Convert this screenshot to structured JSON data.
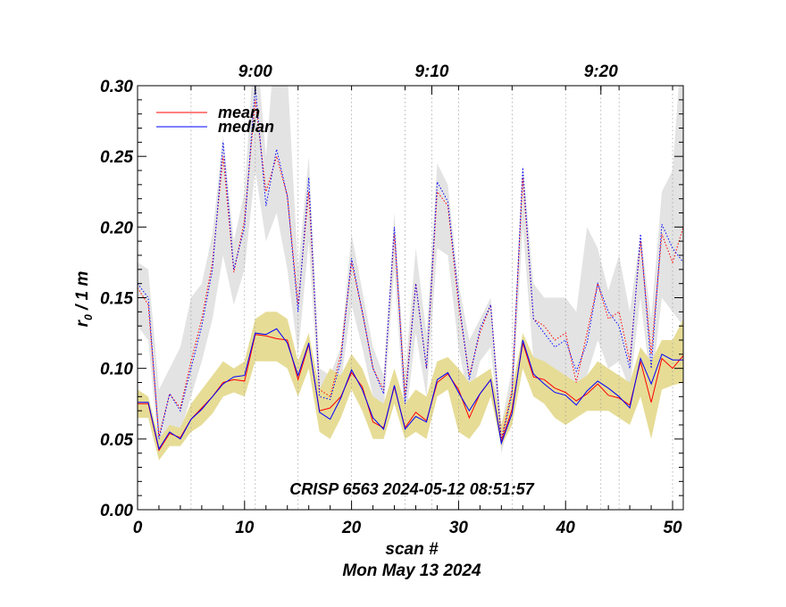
{
  "chart_data": {
    "type": "line",
    "xlabel": "scan #",
    "date_label": "Mon May 13 2024",
    "ylabel_main": "r",
    "ylabel_sub": "0",
    "ylabel_tail": " / 1 m",
    "annotation": "CRISP 6563 2024-05-12 08:51:57",
    "xlim": [
      0,
      51
    ],
    "ylim": [
      0,
      0.3
    ],
    "x_ticks": [
      "0",
      "10",
      "20",
      "30",
      "40",
      "50"
    ],
    "x_tick_values": [
      0,
      10,
      20,
      30,
      40,
      50
    ],
    "y_ticks": [
      "0.00",
      "0.05",
      "0.10",
      "0.15",
      "0.20",
      "0.25",
      "0.30"
    ],
    "y_tick_values": [
      0,
      0.05,
      0.1,
      0.15,
      0.2,
      0.25,
      0.3
    ],
    "time_ticks": [
      {
        "label": "9:00",
        "scan": 11
      },
      {
        "label": "9:10",
        "scan": 27.5
      },
      {
        "label": "9:20",
        "scan": 43.3
      }
    ],
    "time_grid_scans": [
      5,
      10,
      11,
      15,
      20,
      25,
      27.5,
      30,
      35,
      40,
      43.3,
      45,
      50
    ],
    "legend": [
      {
        "name": "mean",
        "color": "#ff0000"
      },
      {
        "name": "median",
        "color": "#0000ff"
      }
    ],
    "colors": {
      "mean": "#ff0000",
      "median": "#0000ff",
      "band_low": "#e6dc96",
      "band_high": "#e3e3e3",
      "grid": "#999999"
    },
    "series_high_mean": [
      0.157,
      0.145,
      0.052,
      0.082,
      0.072,
      0.105,
      0.135,
      0.175,
      0.25,
      0.168,
      0.205,
      0.29,
      0.225,
      0.25,
      0.222,
      0.145,
      0.225,
      0.085,
      0.08,
      0.11,
      0.175,
      0.14,
      0.1,
      0.085,
      0.195,
      0.08,
      0.16,
      0.1,
      0.225,
      0.215,
      0.145,
      0.095,
      0.125,
      0.145,
      0.05,
      0.085,
      0.235,
      0.135,
      0.13,
      0.12,
      0.125,
      0.09,
      0.125,
      0.16,
      0.135,
      0.14,
      0.105,
      0.19,
      0.11,
      0.195,
      0.175,
      0.2
    ],
    "series_high_median": [
      0.16,
      0.15,
      0.05,
      0.082,
      0.07,
      0.1,
      0.13,
      0.17,
      0.26,
      0.17,
      0.2,
      0.3,
      0.215,
      0.255,
      0.222,
      0.14,
      0.235,
      0.08,
      0.078,
      0.105,
      0.178,
      0.14,
      0.1,
      0.082,
      0.2,
      0.075,
      0.16,
      0.1,
      0.232,
      0.218,
      0.15,
      0.092,
      0.128,
      0.145,
      0.048,
      0.082,
      0.242,
      0.135,
      0.125,
      0.115,
      0.12,
      0.098,
      0.118,
      0.16,
      0.14,
      0.13,
      0.1,
      0.195,
      0.1,
      0.202,
      0.185,
      0.175
    ],
    "series_low_mean": [
      0.075,
      0.075,
      0.042,
      0.054,
      0.051,
      0.064,
      0.072,
      0.08,
      0.09,
      0.092,
      0.091,
      0.124,
      0.123,
      0.121,
      0.12,
      0.092,
      0.117,
      0.07,
      0.072,
      0.08,
      0.097,
      0.087,
      0.062,
      0.058,
      0.087,
      0.058,
      0.069,
      0.063,
      0.09,
      0.096,
      0.085,
      0.065,
      0.082,
      0.092,
      0.048,
      0.071,
      0.118,
      0.094,
      0.092,
      0.086,
      0.083,
      0.077,
      0.082,
      0.089,
      0.081,
      0.079,
      0.074,
      0.105,
      0.076,
      0.107,
      0.1,
      0.109
    ],
    "series_low_median": [
      0.076,
      0.076,
      0.043,
      0.055,
      0.05,
      0.064,
      0.071,
      0.08,
      0.089,
      0.094,
      0.095,
      0.125,
      0.124,
      0.128,
      0.118,
      0.095,
      0.118,
      0.069,
      0.064,
      0.079,
      0.099,
      0.085,
      0.065,
      0.057,
      0.088,
      0.057,
      0.066,
      0.062,
      0.092,
      0.097,
      0.083,
      0.07,
      0.082,
      0.092,
      0.047,
      0.068,
      0.12,
      0.096,
      0.089,
      0.083,
      0.081,
      0.074,
      0.084,
      0.091,
      0.086,
      0.08,
      0.072,
      0.107,
      0.089,
      0.11,
      0.106,
      0.106
    ],
    "band_high_top": [
      0.175,
      0.17,
      0.085,
      0.1,
      0.115,
      0.15,
      0.16,
      0.195,
      0.265,
      0.19,
      0.225,
      0.34,
      0.25,
      0.345,
      0.31,
      0.17,
      0.25,
      0.1,
      0.095,
      0.115,
      0.195,
      0.155,
      0.115,
      0.095,
      0.21,
      0.095,
      0.185,
      0.125,
      0.245,
      0.23,
      0.16,
      0.12,
      0.135,
      0.15,
      0.06,
      0.1,
      0.245,
      0.16,
      0.15,
      0.15,
      0.15,
      0.14,
      0.2,
      0.185,
      0.155,
      0.18,
      0.14,
      0.195,
      0.135,
      0.225,
      0.24,
      0.345
    ],
    "band_high_bottom": [
      0.13,
      0.12,
      0.04,
      0.06,
      0.055,
      0.08,
      0.105,
      0.135,
      0.18,
      0.145,
      0.17,
      0.24,
      0.19,
      0.21,
      0.17,
      0.11,
      0.19,
      0.07,
      0.065,
      0.09,
      0.145,
      0.115,
      0.08,
      0.07,
      0.17,
      0.06,
      0.125,
      0.08,
      0.185,
      0.18,
      0.115,
      0.075,
      0.105,
      0.115,
      0.04,
      0.07,
      0.2,
      0.105,
      0.1,
      0.1,
      0.09,
      0.075,
      0.095,
      0.12,
      0.1,
      0.105,
      0.085,
      0.15,
      0.085,
      0.15,
      0.14,
      0.13
    ],
    "band_low_top": [
      0.085,
      0.08,
      0.05,
      0.06,
      0.058,
      0.075,
      0.085,
      0.095,
      0.105,
      0.1,
      0.105,
      0.135,
      0.14,
      0.14,
      0.135,
      0.105,
      0.125,
      0.085,
      0.1,
      0.095,
      0.11,
      0.1,
      0.08,
      0.075,
      0.1,
      0.075,
      0.085,
      0.08,
      0.105,
      0.108,
      0.1,
      0.09,
      0.095,
      0.1,
      0.06,
      0.085,
      0.125,
      0.108,
      0.105,
      0.1,
      0.095,
      0.09,
      0.095,
      0.105,
      0.1,
      0.095,
      0.09,
      0.115,
      0.105,
      0.12,
      0.12,
      0.135
    ],
    "band_low_bottom": [
      0.065,
      0.065,
      0.035,
      0.045,
      0.045,
      0.055,
      0.06,
      0.068,
      0.08,
      0.083,
      0.08,
      0.105,
      0.105,
      0.105,
      0.1,
      0.08,
      0.1,
      0.055,
      0.05,
      0.065,
      0.085,
      0.07,
      0.05,
      0.05,
      0.075,
      0.05,
      0.055,
      0.05,
      0.08,
      0.085,
      0.055,
      0.05,
      0.06,
      0.08,
      0.045,
      0.06,
      0.1,
      0.08,
      0.075,
      0.065,
      0.06,
      0.065,
      0.07,
      0.07,
      0.07,
      0.065,
      0.06,
      0.08,
      0.05,
      0.085,
      0.088,
      0.09
    ]
  }
}
